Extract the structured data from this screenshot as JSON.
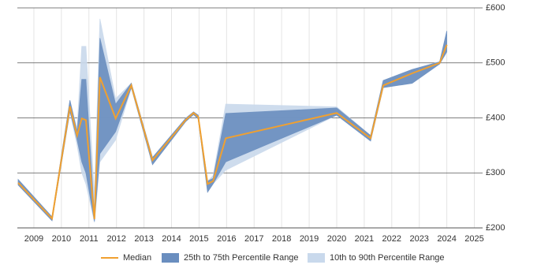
{
  "chart_data": {
    "type": "band-line",
    "x": [
      2008.43,
      2009.66,
      2010.31,
      2010.57,
      2010.74,
      2010.89,
      2011.2,
      2011.4,
      2011.97,
      2012.54,
      2013.31,
      2014.51,
      2014.8,
      2014.97,
      2015.31,
      2015.51,
      2015.97,
      2020.0,
      2021.23,
      2021.69,
      2022.74,
      2023.74,
      2024.0
    ],
    "series": [
      {
        "name": "10th to 90th Percentile Range",
        "color": "#c9d9ec",
        "lower": [
          278,
          213,
          412,
          350,
          300,
          280,
          210,
          320,
          360,
          455,
          315,
          393,
          406,
          398,
          265,
          280,
          305,
          405,
          358,
          455,
          463,
          498,
          520
        ],
        "upper": [
          288,
          220,
          432,
          380,
          530,
          530,
          260,
          580,
          435,
          463,
          328,
          399,
          411,
          405,
          285,
          295,
          425,
          420,
          368,
          468,
          488,
          502,
          558
        ]
      },
      {
        "name": "25th to 75th Percentile Range",
        "color": "#6a8ebf",
        "lower": [
          278,
          213,
          412,
          360,
          320,
          300,
          212,
          335,
          375,
          455,
          315,
          393,
          406,
          398,
          265,
          280,
          320,
          405,
          358,
          455,
          463,
          498,
          520
        ],
        "upper": [
          288,
          220,
          432,
          375,
          470,
          470,
          222,
          545,
          425,
          463,
          328,
          399,
          411,
          405,
          285,
          290,
          408,
          418,
          368,
          468,
          488,
          502,
          558
        ]
      },
      {
        "name": "Median",
        "color": "#f0a030",
        "values": [
          282,
          217,
          421,
          368,
          399,
          396,
          216,
          474,
          399,
          459,
          323,
          396,
          409,
          402,
          280,
          285,
          363,
          409,
          363,
          459,
          481,
          500,
          533
        ]
      }
    ],
    "xlim": [
      2008.4,
      2025.3
    ],
    "xticks": [
      2009,
      2010,
      2011,
      2012,
      2013,
      2014,
      2015,
      2016,
      2017,
      2018,
      2019,
      2020,
      2021,
      2022,
      2023,
      2024,
      2025
    ],
    "ylim": [
      200,
      600
    ],
    "yticks": [
      {
        "value": 200,
        "label": "£200"
      },
      {
        "value": 300,
        "label": "£300"
      },
      {
        "value": 400,
        "label": "£400"
      },
      {
        "value": 500,
        "label": "£500"
      },
      {
        "value": 600,
        "label": "£600"
      }
    ],
    "grid": true
  }
}
